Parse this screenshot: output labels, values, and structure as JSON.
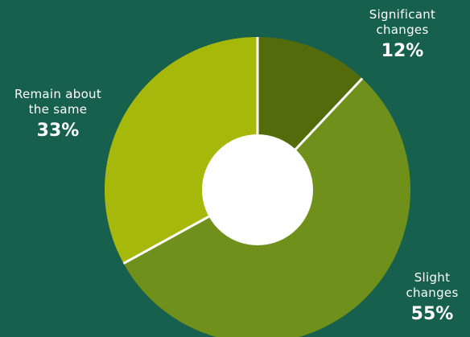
{
  "colors": {
    "background": "#17604d",
    "hole": "#ffffff",
    "separator": "#ffffff",
    "text": "#ffffff"
  },
  "chart_data": {
    "type": "pie",
    "variant": "donut",
    "title": "",
    "slices": [
      {
        "label": "Significant changes",
        "label_lines": [
          "Significant",
          "changes"
        ],
        "value": 12,
        "display": "12%",
        "color": "#546b0c"
      },
      {
        "label": "Slight changes",
        "label_lines": [
          "Slight",
          "changes"
        ],
        "value": 55,
        "display": "55%",
        "color": "#6f901a"
      },
      {
        "label": "Remain about the same",
        "label_lines": [
          "Remain about",
          "the same"
        ],
        "value": 33,
        "display": "33%",
        "color": "#a6b80a"
      }
    ]
  }
}
